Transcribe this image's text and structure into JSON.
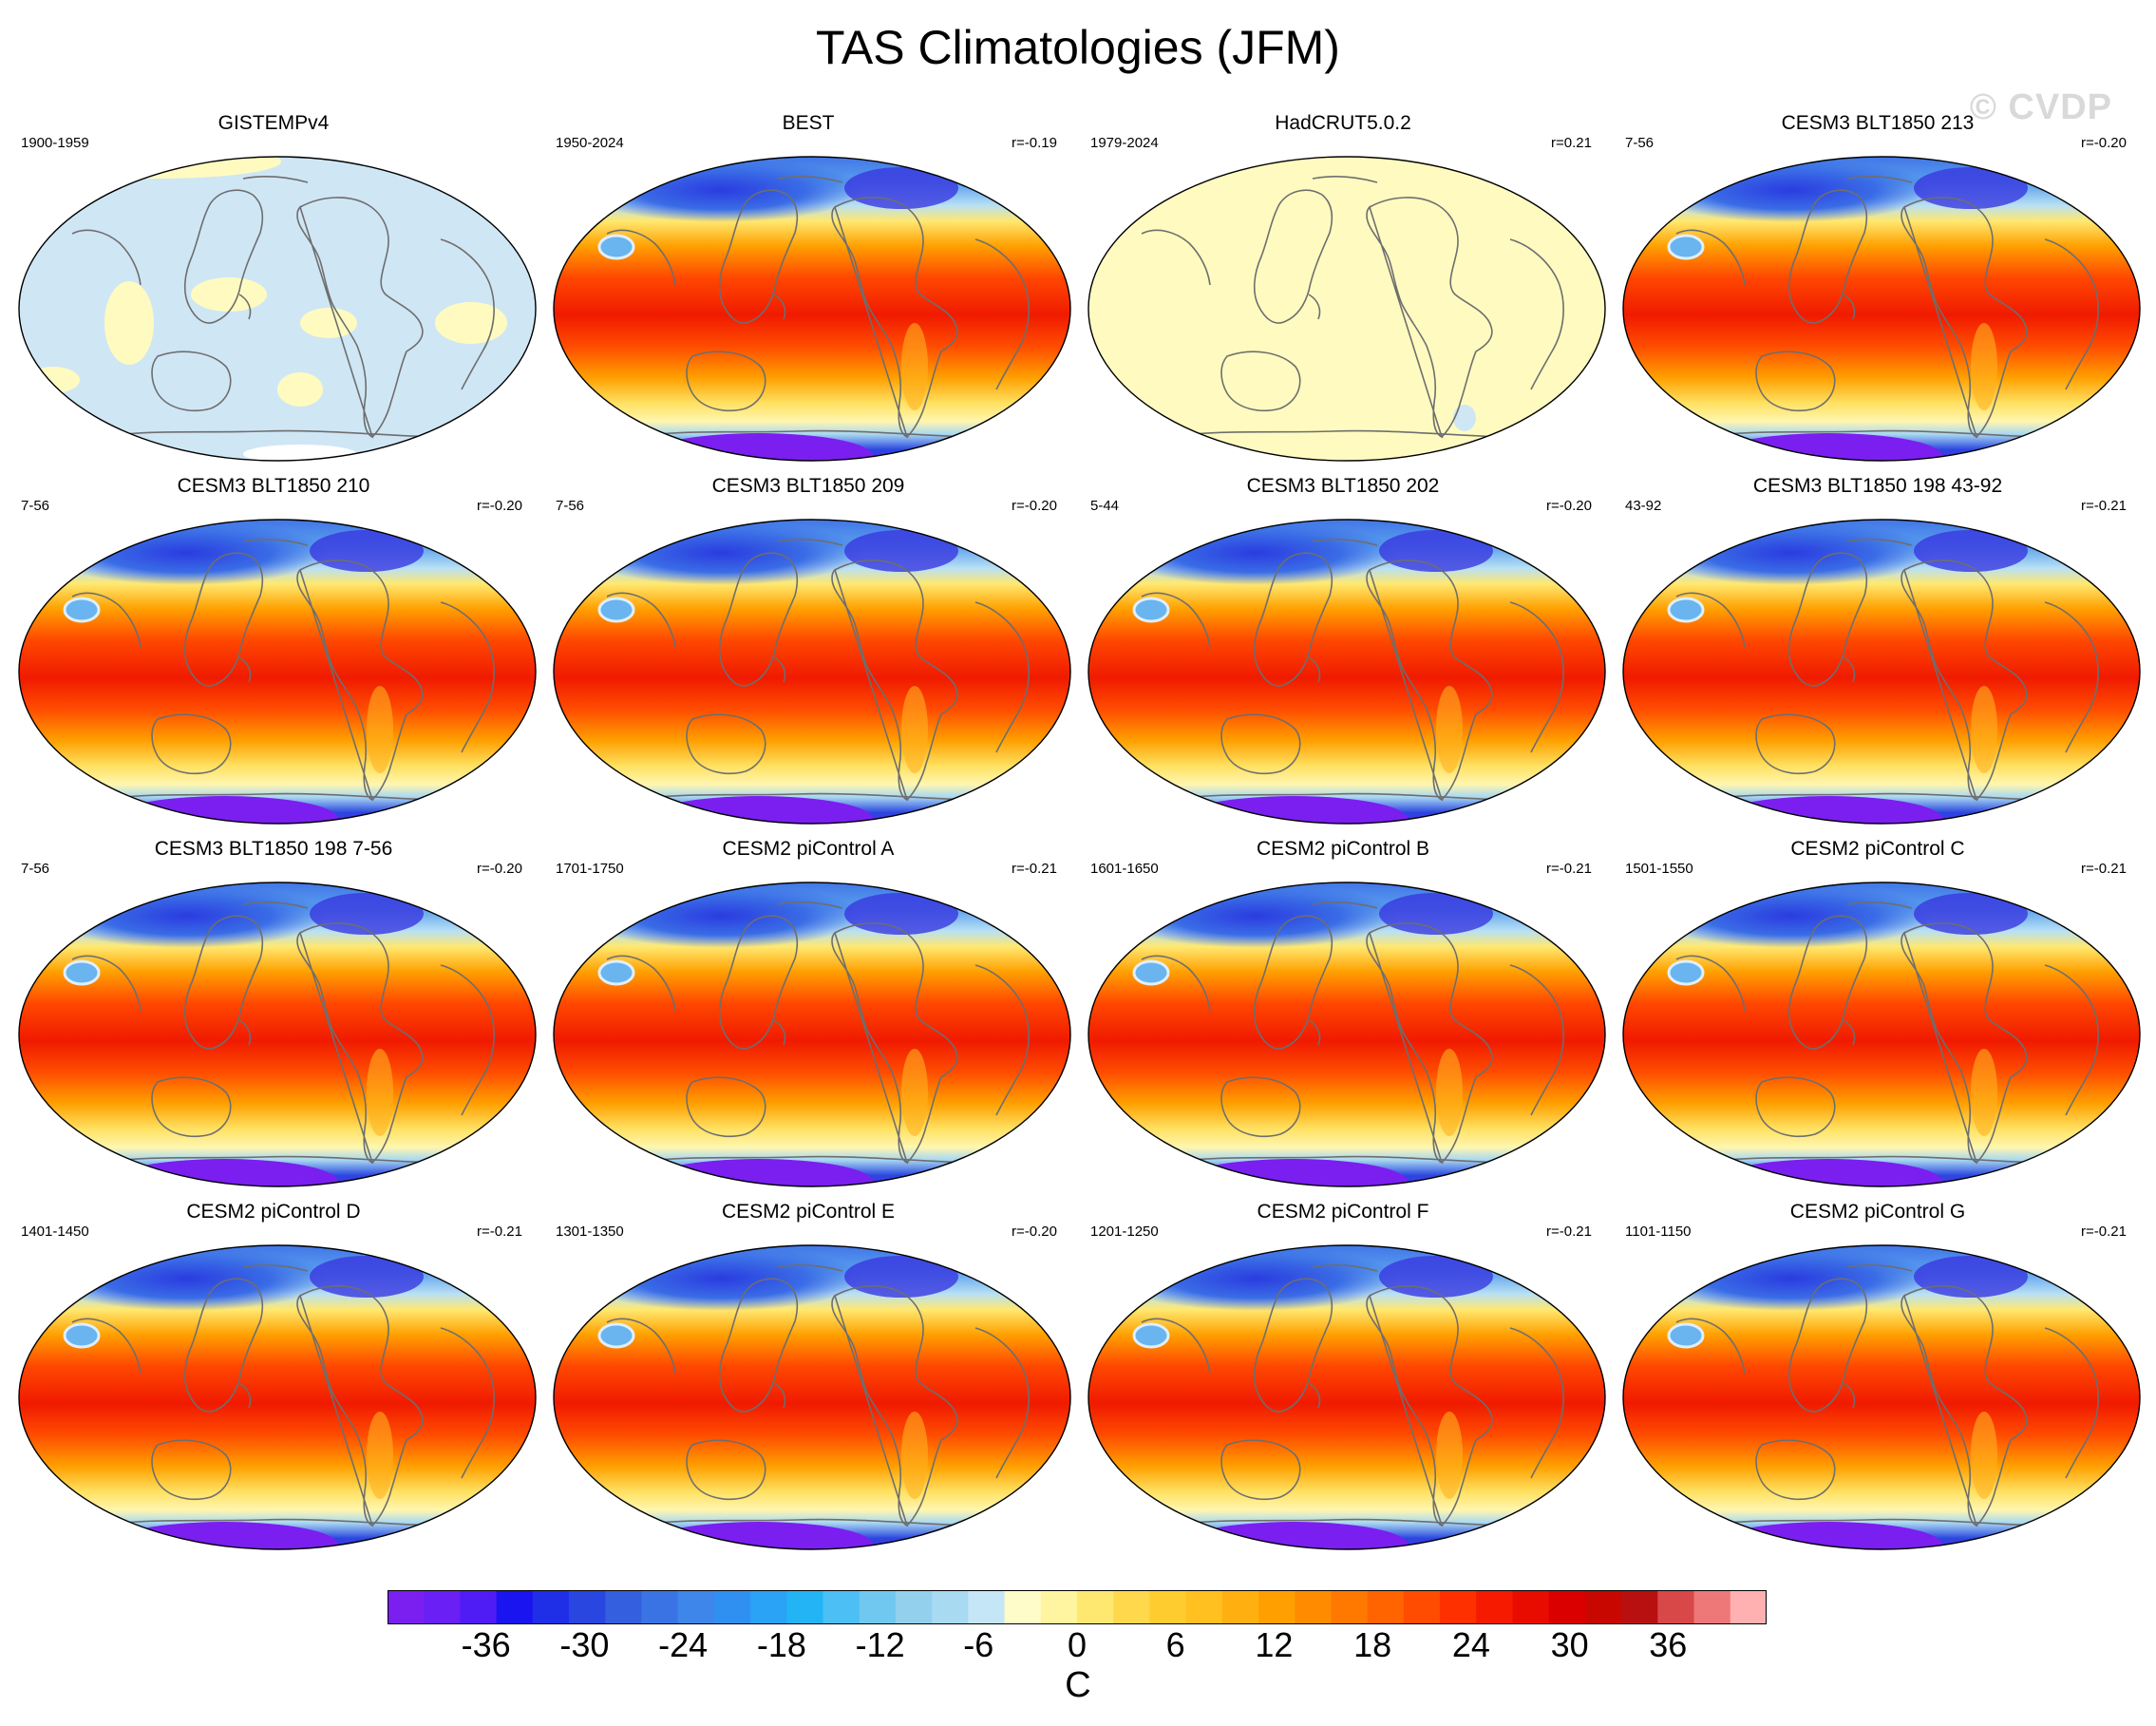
{
  "title": "TAS Climatologies (JFM)",
  "watermark": "© CVDP",
  "chart_data": {
    "type": "heatmap",
    "title": "TAS Climatologies (JFM)",
    "projection": "Robinson, centered on Pacific",
    "panels": [
      {
        "name": "GISTEMPv4",
        "period": "1900-1959",
        "r": "",
        "style": "obs-anomaly-gistemp"
      },
      {
        "name": "BEST",
        "period": "1950-2024",
        "r": "r=-0.19",
        "style": "climatology"
      },
      {
        "name": "HadCRUT5.0.2",
        "period": "1979-2024",
        "r": "r=0.21",
        "style": "obs-anomaly-hadcrut"
      },
      {
        "name": "CESM3 BLT1850 213",
        "period": "7-56",
        "r": "r=-0.20",
        "style": "climatology"
      },
      {
        "name": "CESM3 BLT1850 210",
        "period": "7-56",
        "r": "r=-0.20",
        "style": "climatology"
      },
      {
        "name": "CESM3 BLT1850 209",
        "period": "7-56",
        "r": "r=-0.20",
        "style": "climatology"
      },
      {
        "name": "CESM3 BLT1850 202",
        "period": "5-44",
        "r": "r=-0.20",
        "style": "climatology"
      },
      {
        "name": "CESM3 BLT1850 198 43-92",
        "period": "43-92",
        "r": "r=-0.21",
        "style": "climatology"
      },
      {
        "name": "CESM3 BLT1850 198 7-56",
        "period": "7-56",
        "r": "r=-0.20",
        "style": "climatology"
      },
      {
        "name": "CESM2 piControl A",
        "period": "1701-1750",
        "r": "r=-0.21",
        "style": "climatology"
      },
      {
        "name": "CESM2 piControl B",
        "period": "1601-1650",
        "r": "r=-0.21",
        "style": "climatology"
      },
      {
        "name": "CESM2 piControl C",
        "period": "1501-1550",
        "r": "r=-0.21",
        "style": "climatology"
      },
      {
        "name": "CESM2 piControl D",
        "period": "1401-1450",
        "r": "r=-0.21",
        "style": "climatology"
      },
      {
        "name": "CESM2 piControl E",
        "period": "1301-1350",
        "r": "r=-0.20",
        "style": "climatology"
      },
      {
        "name": "CESM2 piControl F",
        "period": "1201-1250",
        "r": "r=-0.21",
        "style": "climatology"
      },
      {
        "name": "CESM2 piControl G",
        "period": "1101-1150",
        "r": "r=-0.21",
        "style": "climatology"
      }
    ],
    "colorbar": {
      "unit": "C",
      "min": -42,
      "max": 42,
      "step": 2,
      "tick_labels": [
        "-36",
        "-30",
        "-24",
        "-18",
        "-12",
        "-6",
        "0",
        "6",
        "12",
        "18",
        "24",
        "30",
        "36"
      ],
      "colors": [
        "#7a1ff0",
        "#6a1ff5",
        "#4f1cf5",
        "#1a14f0",
        "#1f2fe8",
        "#2a46e0",
        "#3460e0",
        "#3a74e4",
        "#3f86ea",
        "#2f90f2",
        "#2aa2f5",
        "#22b4f5",
        "#4cc0f5",
        "#70c8f0",
        "#92d0ee",
        "#a8daf2",
        "#c4e6f6",
        "#fefcc8",
        "#fff5a0",
        "#ffe870",
        "#ffd84c",
        "#ffcc30",
        "#ffc020",
        "#ffb010",
        "#ffa000",
        "#ff8c00",
        "#ff7800",
        "#ff6400",
        "#ff4c00",
        "#ff3000",
        "#f51a00",
        "#e80c00",
        "#da0000",
        "#c80800",
        "#b81010",
        "#d84848",
        "#ee7878",
        "#ffb0b0"
      ]
    }
  }
}
